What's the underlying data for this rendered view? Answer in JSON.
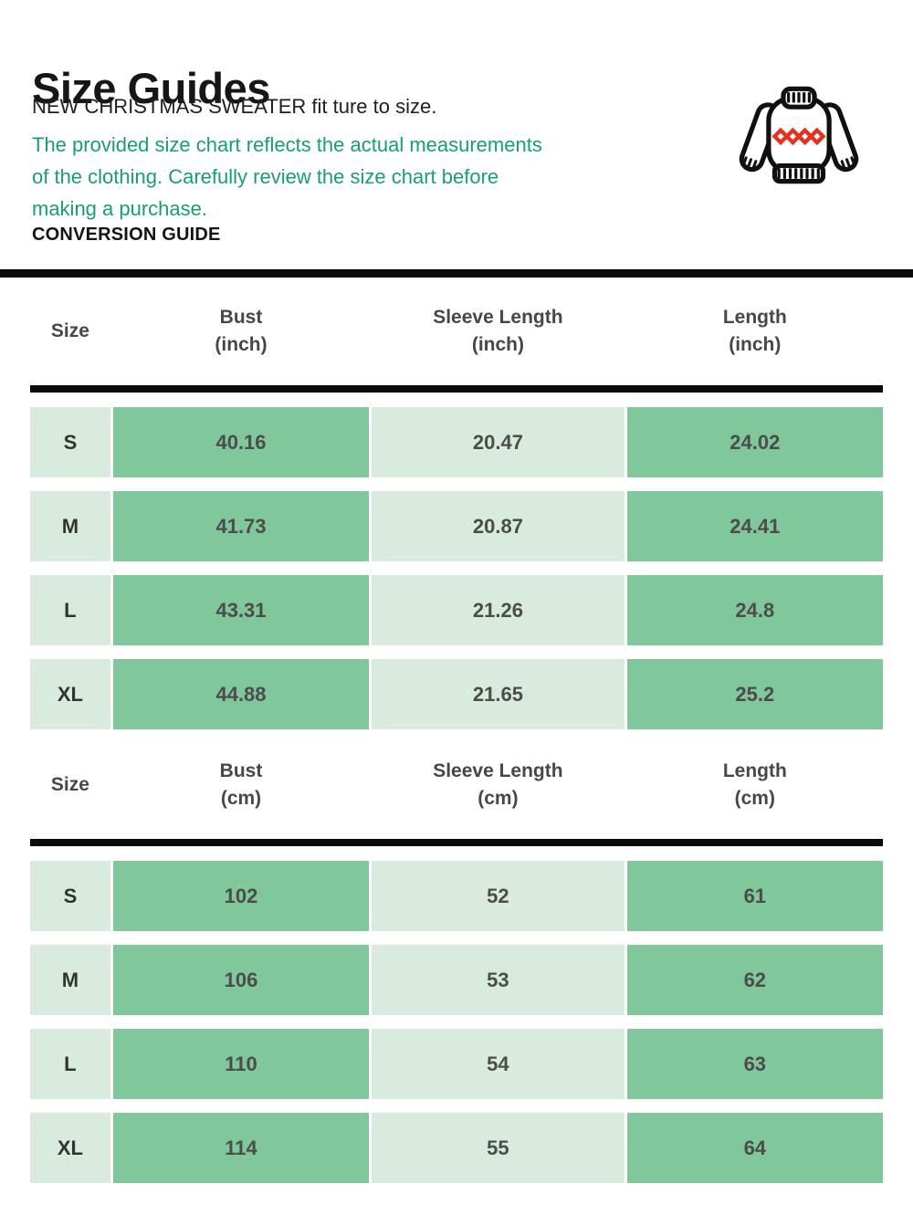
{
  "page": {
    "title": "Size Guides",
    "subtitle": "NEW CHRISTMAS SWEATER fit ture to size.",
    "note_lines": [
      "The provided size chart reflects the actual measurements",
      "of the clothing. Carefully review the size chart before",
      "making a purchase."
    ],
    "section_label": "CONVERSION GUIDE"
  },
  "icon": {
    "name": "christmas-sweater-icon",
    "outline_color": "#101010",
    "pattern_color": "#e5311f"
  },
  "colors": {
    "accent_text": "#179e72",
    "cell_green": "#80c79c",
    "cell_pale": "#d9ebde",
    "rule_black": "#0a0a0a",
    "header_text": "#474747",
    "cell_text": "#4c4c4c"
  },
  "tables": [
    {
      "unit": "inch",
      "columns": [
        {
          "label": "Size",
          "sub": ""
        },
        {
          "label": "Bust",
          "sub": "(inch)"
        },
        {
          "label": "Sleeve Length",
          "sub": "(inch)"
        },
        {
          "label": "Length",
          "sub": "(inch)"
        }
      ],
      "rows": [
        {
          "size": "S",
          "bust": "40.16",
          "sleeve": "20.47",
          "length": "24.02"
        },
        {
          "size": "M",
          "bust": "41.73",
          "sleeve": "20.87",
          "length": "24.41"
        },
        {
          "size": "L",
          "bust": "43.31",
          "sleeve": "21.26",
          "length": "24.8"
        },
        {
          "size": "XL",
          "bust": "44.88",
          "sleeve": "21.65",
          "length": "25.2"
        }
      ]
    },
    {
      "unit": "cm",
      "columns": [
        {
          "label": "Size",
          "sub": ""
        },
        {
          "label": "Bust",
          "sub": "(cm)"
        },
        {
          "label": "Sleeve Length",
          "sub": "(cm)"
        },
        {
          "label": "Length",
          "sub": "(cm)"
        }
      ],
      "rows": [
        {
          "size": "S",
          "bust": "102",
          "sleeve": "52",
          "length": "61"
        },
        {
          "size": "M",
          "bust": "106",
          "sleeve": "53",
          "length": "62"
        },
        {
          "size": "L",
          "bust": "110",
          "sleeve": "54",
          "length": "63"
        },
        {
          "size": "XL",
          "bust": "114",
          "sleeve": "55",
          "length": "64"
        }
      ]
    }
  ]
}
